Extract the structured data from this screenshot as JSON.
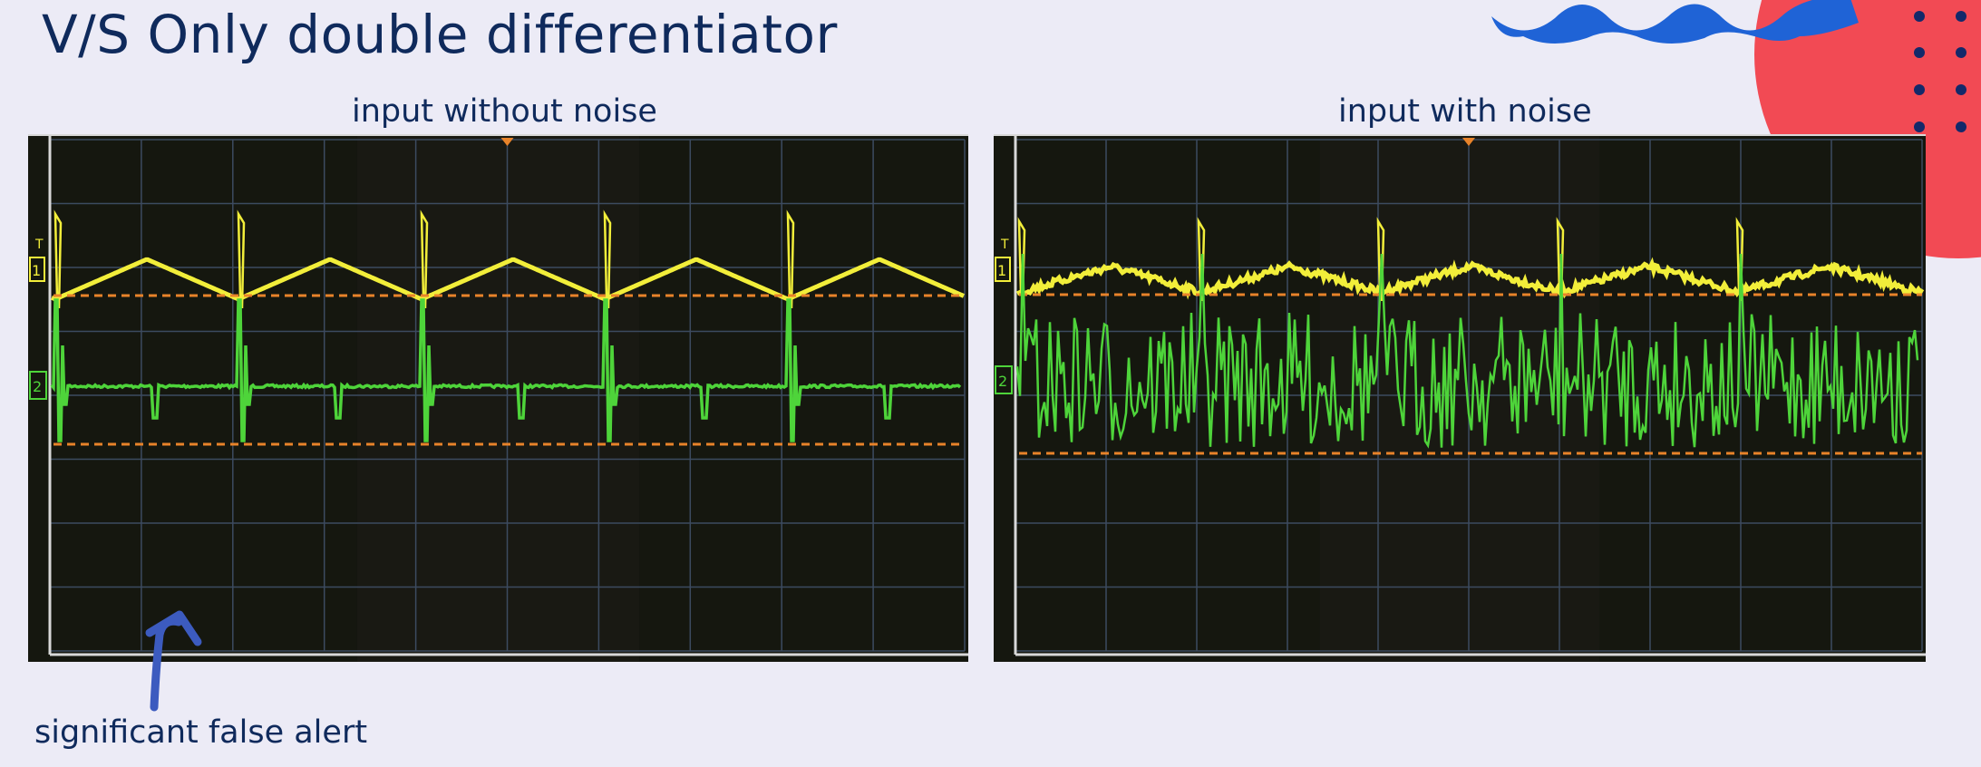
{
  "slide": {
    "title": "V/S Only double differentiator",
    "left_caption": "input without noise",
    "right_caption": "input with noise",
    "annotation": "significant false alert"
  },
  "colors": {
    "background": "#ecebf6",
    "text": "#0f2a5c",
    "input_trace": "#f2ee3a",
    "output_trace": "#4ed43a",
    "threshold": "#e8832a",
    "accent_red": "#f24a54",
    "accent_blue": "#1f63d6",
    "arrow": "#3c5bbf"
  },
  "scope_labels": {
    "ch1": "1",
    "ch2": "2",
    "trigger": "T"
  }
}
